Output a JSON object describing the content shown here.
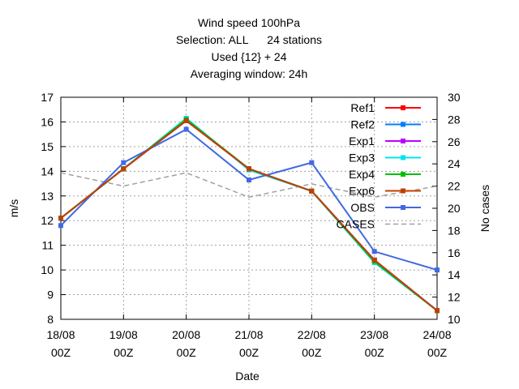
{
  "chart_data": {
    "type": "line",
    "title_lines": [
      "Wind speed 100hPa",
      "Selection: ALL      24 stations",
      "Used {12} + 24",
      "Averaging window: 24h"
    ],
    "xlabel": "Date",
    "ylabel": "m/s",
    "y2label": "No cases",
    "x_ticks": [
      {
        "date": "18/08",
        "hour": "00Z"
      },
      {
        "date": "19/08",
        "hour": "00Z"
      },
      {
        "date": "20/08",
        "hour": "00Z"
      },
      {
        "date": "21/08",
        "hour": "00Z"
      },
      {
        "date": "22/08",
        "hour": "00Z"
      },
      {
        "date": "23/08",
        "hour": "00Z"
      },
      {
        "date": "24/08",
        "hour": "00Z"
      }
    ],
    "ylim": [
      8,
      17
    ],
    "y_ticks": [
      "8",
      "9",
      "10",
      "11",
      "12",
      "13",
      "14",
      "15",
      "16",
      "17"
    ],
    "y2lim": [
      10,
      30
    ],
    "y2_ticks": [
      "10",
      "12",
      "14",
      "16",
      "18",
      "20",
      "22",
      "24",
      "26",
      "28",
      "30"
    ],
    "grid": true,
    "legend_position": "top-right",
    "series": [
      {
        "name": "Ref1",
        "color": "#ff0000",
        "axis": "y1",
        "style": "solid",
        "values": [
          12.1,
          14.1,
          16.05,
          14.1,
          13.2,
          10.4,
          8.35
        ]
      },
      {
        "name": "Ref2",
        "color": "#0080ff",
        "axis": "y1",
        "style": "solid",
        "values": [
          12.1,
          14.1,
          16.1,
          14.1,
          13.2,
          10.4,
          8.35
        ]
      },
      {
        "name": "Exp1",
        "color": "#c000ff",
        "axis": "y1",
        "style": "solid",
        "values": [
          12.1,
          14.1,
          16.05,
          14.1,
          13.2,
          10.4,
          8.35
        ]
      },
      {
        "name": "Exp3",
        "color": "#00e5ee",
        "axis": "y1",
        "style": "solid",
        "values": [
          12.1,
          14.1,
          16.15,
          14.05,
          13.2,
          10.3,
          8.35
        ]
      },
      {
        "name": "Exp4",
        "color": "#00c000",
        "axis": "y1",
        "style": "solid",
        "values": [
          12.1,
          14.1,
          16.1,
          14.1,
          13.2,
          10.35,
          8.35
        ]
      },
      {
        "name": "Exp6",
        "color": "#c04000",
        "axis": "y1",
        "style": "solid",
        "values": [
          12.1,
          14.1,
          16.05,
          14.1,
          13.2,
          10.4,
          8.35
        ]
      },
      {
        "name": "OBS",
        "color": "#4169e1",
        "axis": "y1",
        "style": "solid",
        "values": [
          11.8,
          14.35,
          15.7,
          13.65,
          14.35,
          10.75,
          10.0
        ]
      },
      {
        "name": "CASES",
        "color": "#a0a0a0",
        "axis": "y2",
        "style": "dashed",
        "values": [
          23.2,
          22,
          23.2,
          21,
          22.2,
          21,
          22
        ]
      }
    ]
  }
}
